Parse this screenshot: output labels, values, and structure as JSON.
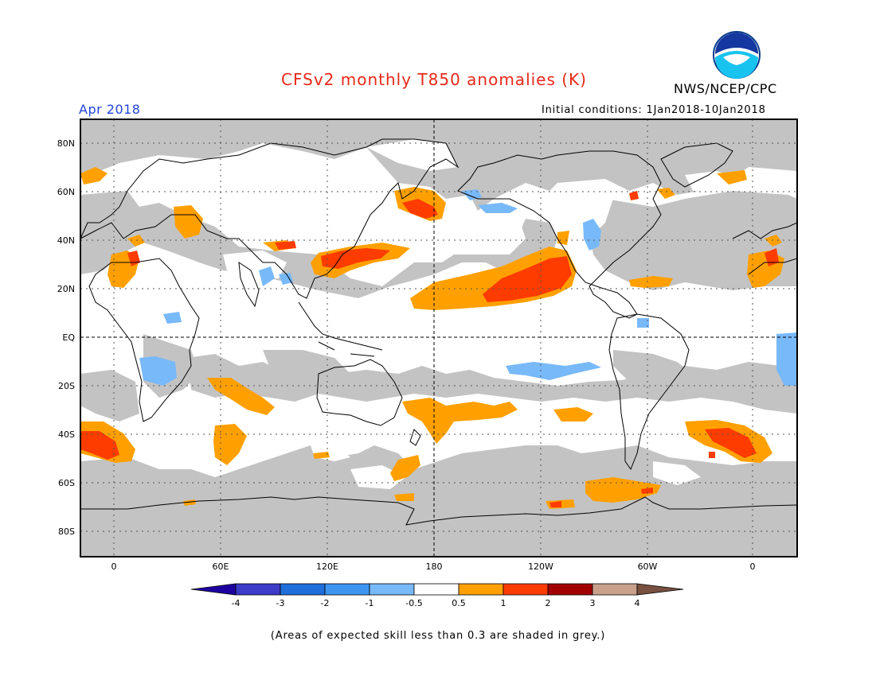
{
  "title": "CFSv2 monthly T850 anomalies (K)",
  "agency": "NWS/NCEP/CPC",
  "logo_text": "NOAA",
  "month_label": "Apr 2018",
  "initial_conditions": "Initial conditions: 1Jan2018-10Jan2018",
  "caption": "(Areas of expected skill less than 0.3 are shaded in grey.)",
  "map": {
    "lat_labels": [
      "80N",
      "60N",
      "40N",
      "20N",
      "EQ",
      "20S",
      "40S",
      "60S",
      "80S"
    ],
    "lon_labels": [
      "0",
      "60E",
      "120E",
      "180",
      "120W",
      "60W",
      "0"
    ],
    "colors": {
      "grey_low_skill": "#c3c3c3",
      "neutral": "#ffffff",
      "warm_0_5_1": "#ffa000",
      "warm_1_2": "#ff3c00",
      "cool_minus1_minus0_5": "#78b9fa"
    }
  },
  "colorbar": {
    "labels": [
      "-4",
      "-3",
      "-2",
      "-1",
      "-0.5",
      "0.5",
      "1",
      "2",
      "3",
      "4"
    ],
    "colors": [
      "#1e00a0",
      "#3c3cc8",
      "#1e6edc",
      "#3c96f0",
      "#78b9fa",
      "#ffffff",
      "#ffa000",
      "#ff3c00",
      "#a00000",
      "#c8a08c",
      "#785040"
    ]
  }
}
